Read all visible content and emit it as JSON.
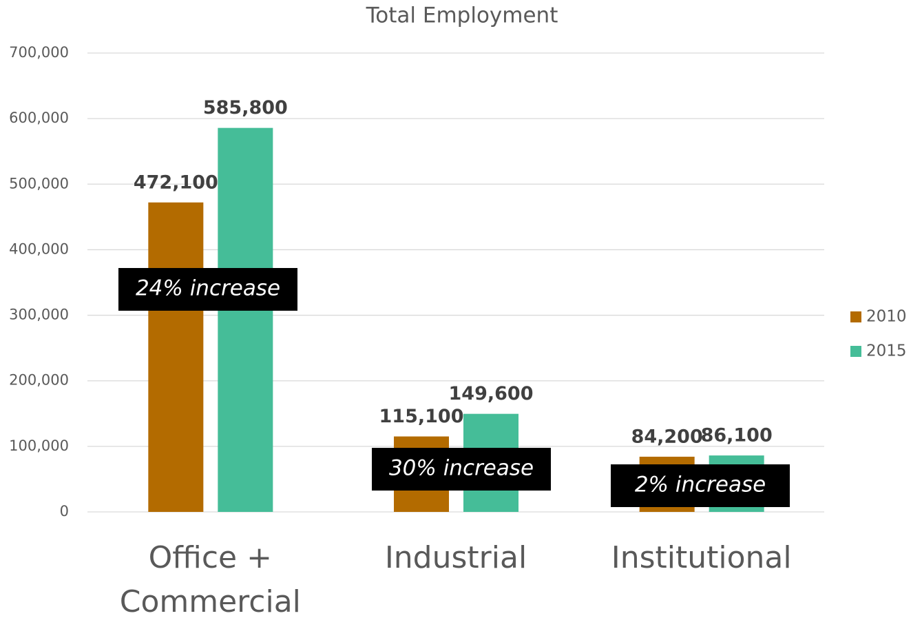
{
  "chart_data": {
    "type": "bar",
    "title": "Total Employment",
    "categories": [
      "Office + Commercial",
      "Industrial",
      "Institutional"
    ],
    "series": [
      {
        "name": "2010",
        "color": "#b36b00",
        "values": [
          472100,
          115100,
          84200
        ],
        "value_labels": [
          "472,100",
          "115,100",
          "84,200"
        ]
      },
      {
        "name": "2015",
        "color": "#45bd98",
        "values": [
          585800,
          149600,
          86100
        ],
        "value_labels": [
          "585,800",
          "149,600",
          "86,100"
        ]
      }
    ],
    "ylim": [
      0,
      700000
    ],
    "yticks": [
      0,
      {
        "value": 100000,
        "label": "100,000"
      },
      {
        "value": 200000,
        "label": "200,000"
      },
      {
        "value": 300000,
        "label": "300,000"
      },
      {
        "value": 400000,
        "label": "400,000"
      },
      {
        "value": 500000,
        "label": "500,000"
      },
      {
        "value": 600000,
        "label": "600,000"
      },
      {
        "value": 700000,
        "label": "700,000"
      }
    ],
    "grid": true,
    "legend": "right",
    "annotations": [
      "24% increase",
      "30% increase",
      "2% increase"
    ]
  }
}
